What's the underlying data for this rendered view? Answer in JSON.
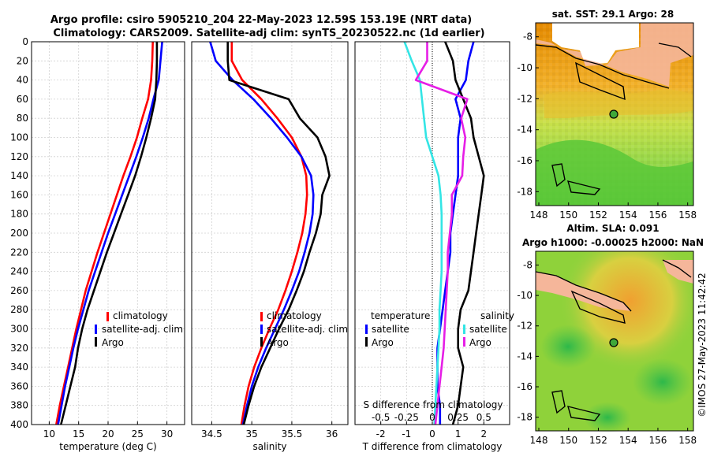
{
  "title": {
    "line1": "Argo profile: csiro 5905210_204 22-May-2023 12.59S 153.19E (NRT data)",
    "line2": "Climatology: CARS2009. Satellite-adj clim: synTS_20230522.nc (1d earlier)"
  },
  "depth_ticks": [
    0,
    20,
    40,
    60,
    80,
    100,
    120,
    140,
    160,
    180,
    200,
    220,
    240,
    260,
    280,
    300,
    320,
    340,
    360,
    380,
    400
  ],
  "colors": {
    "climatology": "#ff0000",
    "satellite": "#0000ff",
    "argo": "#000000",
    "s_satellite": "#33e5e5",
    "s_argo": "#e61ee6"
  },
  "chart_data": [
    {
      "type": "line",
      "name": "temperature",
      "xlabel": "temperature (deg C)",
      "xlim": [
        7,
        33
      ],
      "ylim": [
        0,
        400
      ],
      "xticks": [
        10,
        15,
        20,
        25,
        30
      ],
      "series": [
        {
          "name": "climatology",
          "x": [
            27.6,
            27.5,
            27.3,
            26.8,
            25.8,
            24.9,
            23.8,
            22.6,
            21.5,
            20.4,
            19.3,
            18.2,
            17.2,
            16.2,
            15.4,
            14.6,
            13.9,
            13.2,
            12.5,
            11.8,
            11.2
          ],
          "y": [
            0,
            20,
            40,
            60,
            80,
            100,
            120,
            140,
            160,
            180,
            200,
            220,
            240,
            260,
            280,
            300,
            320,
            340,
            360,
            380,
            400
          ]
        },
        {
          "name": "satellite-adj. clim",
          "x": [
            29.2,
            28.9,
            28.6,
            27.7,
            26.9,
            25.9,
            24.8,
            23.6,
            22.4,
            21.2,
            20.0,
            18.9,
            17.8,
            16.7,
            15.8,
            14.9,
            14.1,
            13.4,
            12.7,
            12.1,
            11.5
          ],
          "y": [
            0,
            20,
            40,
            60,
            80,
            100,
            120,
            140,
            160,
            180,
            200,
            220,
            240,
            260,
            280,
            300,
            320,
            340,
            360,
            380,
            400
          ]
        },
        {
          "name": "Argo",
          "x": [
            28.3,
            28.3,
            28.2,
            28.0,
            27.3,
            26.5,
            25.6,
            24.6,
            23.4,
            22.2,
            21.0,
            19.8,
            18.7,
            17.6,
            16.5,
            15.6,
            14.9,
            14.4,
            13.6,
            12.8,
            12.0
          ],
          "y": [
            0,
            20,
            40,
            60,
            80,
            100,
            120,
            140,
            160,
            180,
            200,
            220,
            240,
            260,
            280,
            300,
            320,
            340,
            360,
            380,
            400
          ]
        }
      ],
      "legend": [
        "climatology",
        "satellite-adj. clim",
        "Argo"
      ]
    },
    {
      "type": "line",
      "name": "salinity",
      "xlabel": "salinity",
      "xlim": [
        34.25,
        36.2
      ],
      "ylim": [
        0,
        400
      ],
      "xticks": [
        34.5,
        35,
        35.5,
        36
      ],
      "xticklabels": [
        "34.5",
        "35",
        "35.5",
        "36"
      ],
      "series": [
        {
          "name": "climatology",
          "x": [
            34.75,
            34.75,
            34.88,
            35.12,
            35.32,
            35.5,
            35.62,
            35.68,
            35.69,
            35.67,
            35.63,
            35.57,
            35.5,
            35.42,
            35.33,
            35.22,
            35.12,
            35.03,
            34.96,
            34.91,
            34.87
          ],
          "y": [
            0,
            20,
            40,
            60,
            80,
            100,
            120,
            140,
            160,
            180,
            200,
            220,
            240,
            260,
            280,
            300,
            320,
            340,
            360,
            380,
            400
          ]
        },
        {
          "name": "satellite-adj. clim",
          "x": [
            34.48,
            34.55,
            34.76,
            35.02,
            35.24,
            35.44,
            35.62,
            35.74,
            35.77,
            35.76,
            35.72,
            35.66,
            35.59,
            35.5,
            35.4,
            35.29,
            35.18,
            35.08,
            35.0,
            34.94,
            34.89
          ],
          "y": [
            0,
            20,
            40,
            60,
            80,
            100,
            120,
            140,
            160,
            180,
            200,
            220,
            240,
            260,
            280,
            300,
            320,
            340,
            360,
            380,
            400
          ]
        },
        {
          "name": "Argo",
          "x": [
            34.7,
            34.7,
            34.72,
            35.46,
            35.6,
            35.82,
            35.92,
            35.97,
            35.88,
            35.86,
            35.8,
            35.72,
            35.65,
            35.56,
            35.46,
            35.34,
            35.23,
            35.12,
            35.03,
            34.96,
            34.9
          ],
          "y": [
            0,
            20,
            40,
            60,
            80,
            100,
            120,
            140,
            160,
            180,
            200,
            220,
            240,
            260,
            280,
            300,
            320,
            340,
            360,
            380,
            400
          ]
        }
      ],
      "legend": [
        "climatology",
        "satellite-adj. clim",
        "Argo"
      ]
    },
    {
      "type": "line",
      "name": "differences",
      "xlabel": "T difference from climatology",
      "xlabel_top": "S difference from climatology",
      "xlim": [
        -3,
        3
      ],
      "ylim": [
        0,
        400
      ],
      "xticks": [
        -2,
        -1,
        0,
        1,
        2
      ],
      "xticklabels": [
        "-2",
        "-1",
        "0",
        "1",
        "2"
      ],
      "sticks": [
        "-0.5",
        "-0.25",
        "0",
        "0.25",
        "0.5"
      ],
      "series": [
        {
          "name": "temperature satellite",
          "x": [
            1.6,
            1.4,
            1.3,
            0.9,
            1.1,
            1.0,
            1.0,
            1.0,
            0.9,
            0.8,
            0.7,
            0.7,
            0.6,
            0.5,
            0.4,
            0.3,
            0.2,
            0.2,
            0.2,
            0.3,
            0.3
          ],
          "y": [
            0,
            20,
            40,
            60,
            80,
            100,
            120,
            140,
            160,
            180,
            200,
            220,
            240,
            260,
            280,
            300,
            320,
            340,
            360,
            380,
            400
          ]
        },
        {
          "name": "temperature Argo",
          "x": [
            0.5,
            0.8,
            0.9,
            1.2,
            1.5,
            1.6,
            1.8,
            2.0,
            1.9,
            1.8,
            1.7,
            1.6,
            1.5,
            1.4,
            1.1,
            1.0,
            1.0,
            1.2,
            1.1,
            1.0,
            0.8
          ],
          "y": [
            0,
            20,
            40,
            60,
            80,
            100,
            120,
            140,
            160,
            180,
            200,
            220,
            240,
            260,
            280,
            300,
            320,
            340,
            360,
            380,
            400
          ]
        },
        {
          "name": "salinity satellite",
          "x": [
            -0.27,
            -0.2,
            -0.12,
            -0.1,
            -0.08,
            -0.06,
            0.0,
            0.06,
            0.08,
            0.09,
            0.09,
            0.09,
            0.09,
            0.08,
            0.07,
            0.07,
            0.06,
            0.05,
            0.04,
            0.03,
            0.02
          ],
          "y": [
            0,
            20,
            40,
            60,
            80,
            100,
            120,
            140,
            160,
            180,
            200,
            220,
            240,
            260,
            280,
            300,
            320,
            340,
            360,
            380,
            400
          ]
        },
        {
          "name": "salinity Argo",
          "x": [
            -0.05,
            -0.05,
            -0.16,
            0.34,
            0.28,
            0.32,
            0.3,
            0.29,
            0.19,
            0.19,
            0.17,
            0.15,
            0.15,
            0.14,
            0.13,
            0.12,
            0.11,
            0.09,
            0.07,
            0.05,
            0.03
          ],
          "y": [
            0,
            20,
            40,
            60,
            80,
            100,
            120,
            140,
            160,
            180,
            200,
            220,
            240,
            260,
            280,
            300,
            320,
            340,
            360,
            380,
            400
          ]
        }
      ],
      "legend": {
        "temperature_label": "temperature",
        "salinity_label": "salinity",
        "entries": [
          "satellite",
          "Argo"
        ]
      }
    }
  ],
  "maps": {
    "sst_title": "sat. SST: 29.1 Argo: 28",
    "sla_title_1": "Altim. SLA: 0.091",
    "sla_title_2": "Argo h1000: -0.00025 h2000: NaN",
    "xticks": [
      "148",
      "150",
      "152",
      "154",
      "156",
      "158"
    ],
    "yticks": [
      "-8",
      "-10",
      "-12",
      "-14",
      "-16",
      "-18"
    ]
  },
  "credit": "©IMOS 27-May-2023 11:42:42"
}
